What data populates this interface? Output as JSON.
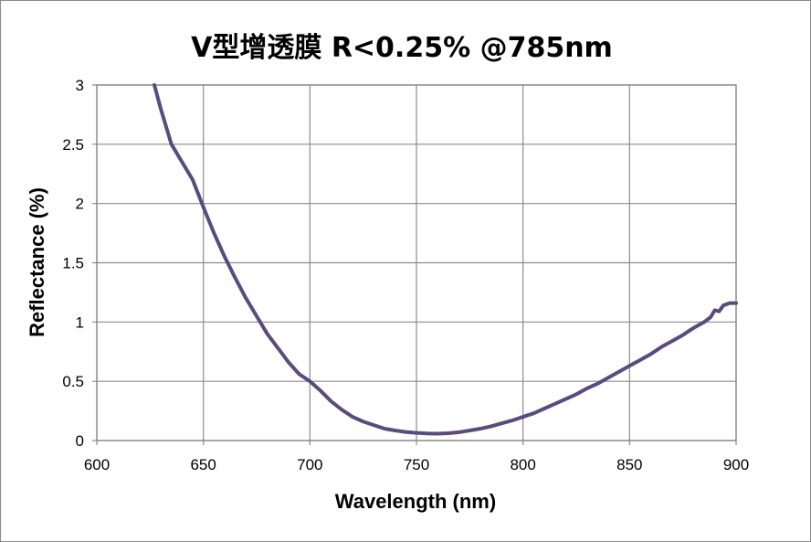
{
  "chart_data": {
    "type": "line",
    "title": "V型增透膜 R<0.25% @785nm",
    "xlabel": "Wavelength (nm)",
    "ylabel": "Reflectance (%)",
    "xlim": [
      600,
      900
    ],
    "ylim": [
      0,
      3
    ],
    "x_ticks": [
      "600",
      "650",
      "700",
      "750",
      "800",
      "850",
      "900"
    ],
    "y_ticks": [
      "0",
      "0.5",
      "1",
      "1.5",
      "2",
      "2.5",
      "3"
    ],
    "grid": true,
    "legend": "none",
    "line_color": "#5b4a7d",
    "series": [
      {
        "points": [
          [
            627,
            3.0
          ],
          [
            630,
            2.8
          ],
          [
            635,
            2.5
          ],
          [
            640,
            2.35
          ],
          [
            645,
            2.2
          ],
          [
            650,
            1.97
          ],
          [
            655,
            1.75
          ],
          [
            660,
            1.55
          ],
          [
            665,
            1.37
          ],
          [
            670,
            1.2
          ],
          [
            675,
            1.05
          ],
          [
            680,
            0.9
          ],
          [
            685,
            0.78
          ],
          [
            690,
            0.66
          ],
          [
            695,
            0.56
          ],
          [
            700,
            0.5
          ],
          [
            705,
            0.42
          ],
          [
            710,
            0.33
          ],
          [
            715,
            0.26
          ],
          [
            720,
            0.2
          ],
          [
            725,
            0.16
          ],
          [
            730,
            0.13
          ],
          [
            735,
            0.1
          ],
          [
            740,
            0.085
          ],
          [
            745,
            0.072
          ],
          [
            750,
            0.065
          ],
          [
            755,
            0.06
          ],
          [
            760,
            0.058
          ],
          [
            765,
            0.062
          ],
          [
            770,
            0.07
          ],
          [
            775,
            0.085
          ],
          [
            780,
            0.1
          ],
          [
            785,
            0.12
          ],
          [
            790,
            0.145
          ],
          [
            795,
            0.17
          ],
          [
            800,
            0.2
          ],
          [
            805,
            0.23
          ],
          [
            810,
            0.27
          ],
          [
            815,
            0.31
          ],
          [
            820,
            0.35
          ],
          [
            825,
            0.39
          ],
          [
            830,
            0.44
          ],
          [
            835,
            0.48
          ],
          [
            840,
            0.53
          ],
          [
            845,
            0.58
          ],
          [
            850,
            0.63
          ],
          [
            855,
            0.68
          ],
          [
            860,
            0.73
          ],
          [
            865,
            0.79
          ],
          [
            870,
            0.84
          ],
          [
            875,
            0.89
          ],
          [
            880,
            0.95
          ],
          [
            885,
            1.0
          ],
          [
            888,
            1.04
          ],
          [
            890,
            1.1
          ],
          [
            892,
            1.09
          ],
          [
            894,
            1.14
          ],
          [
            897,
            1.16
          ],
          [
            900,
            1.16
          ]
        ]
      }
    ]
  }
}
